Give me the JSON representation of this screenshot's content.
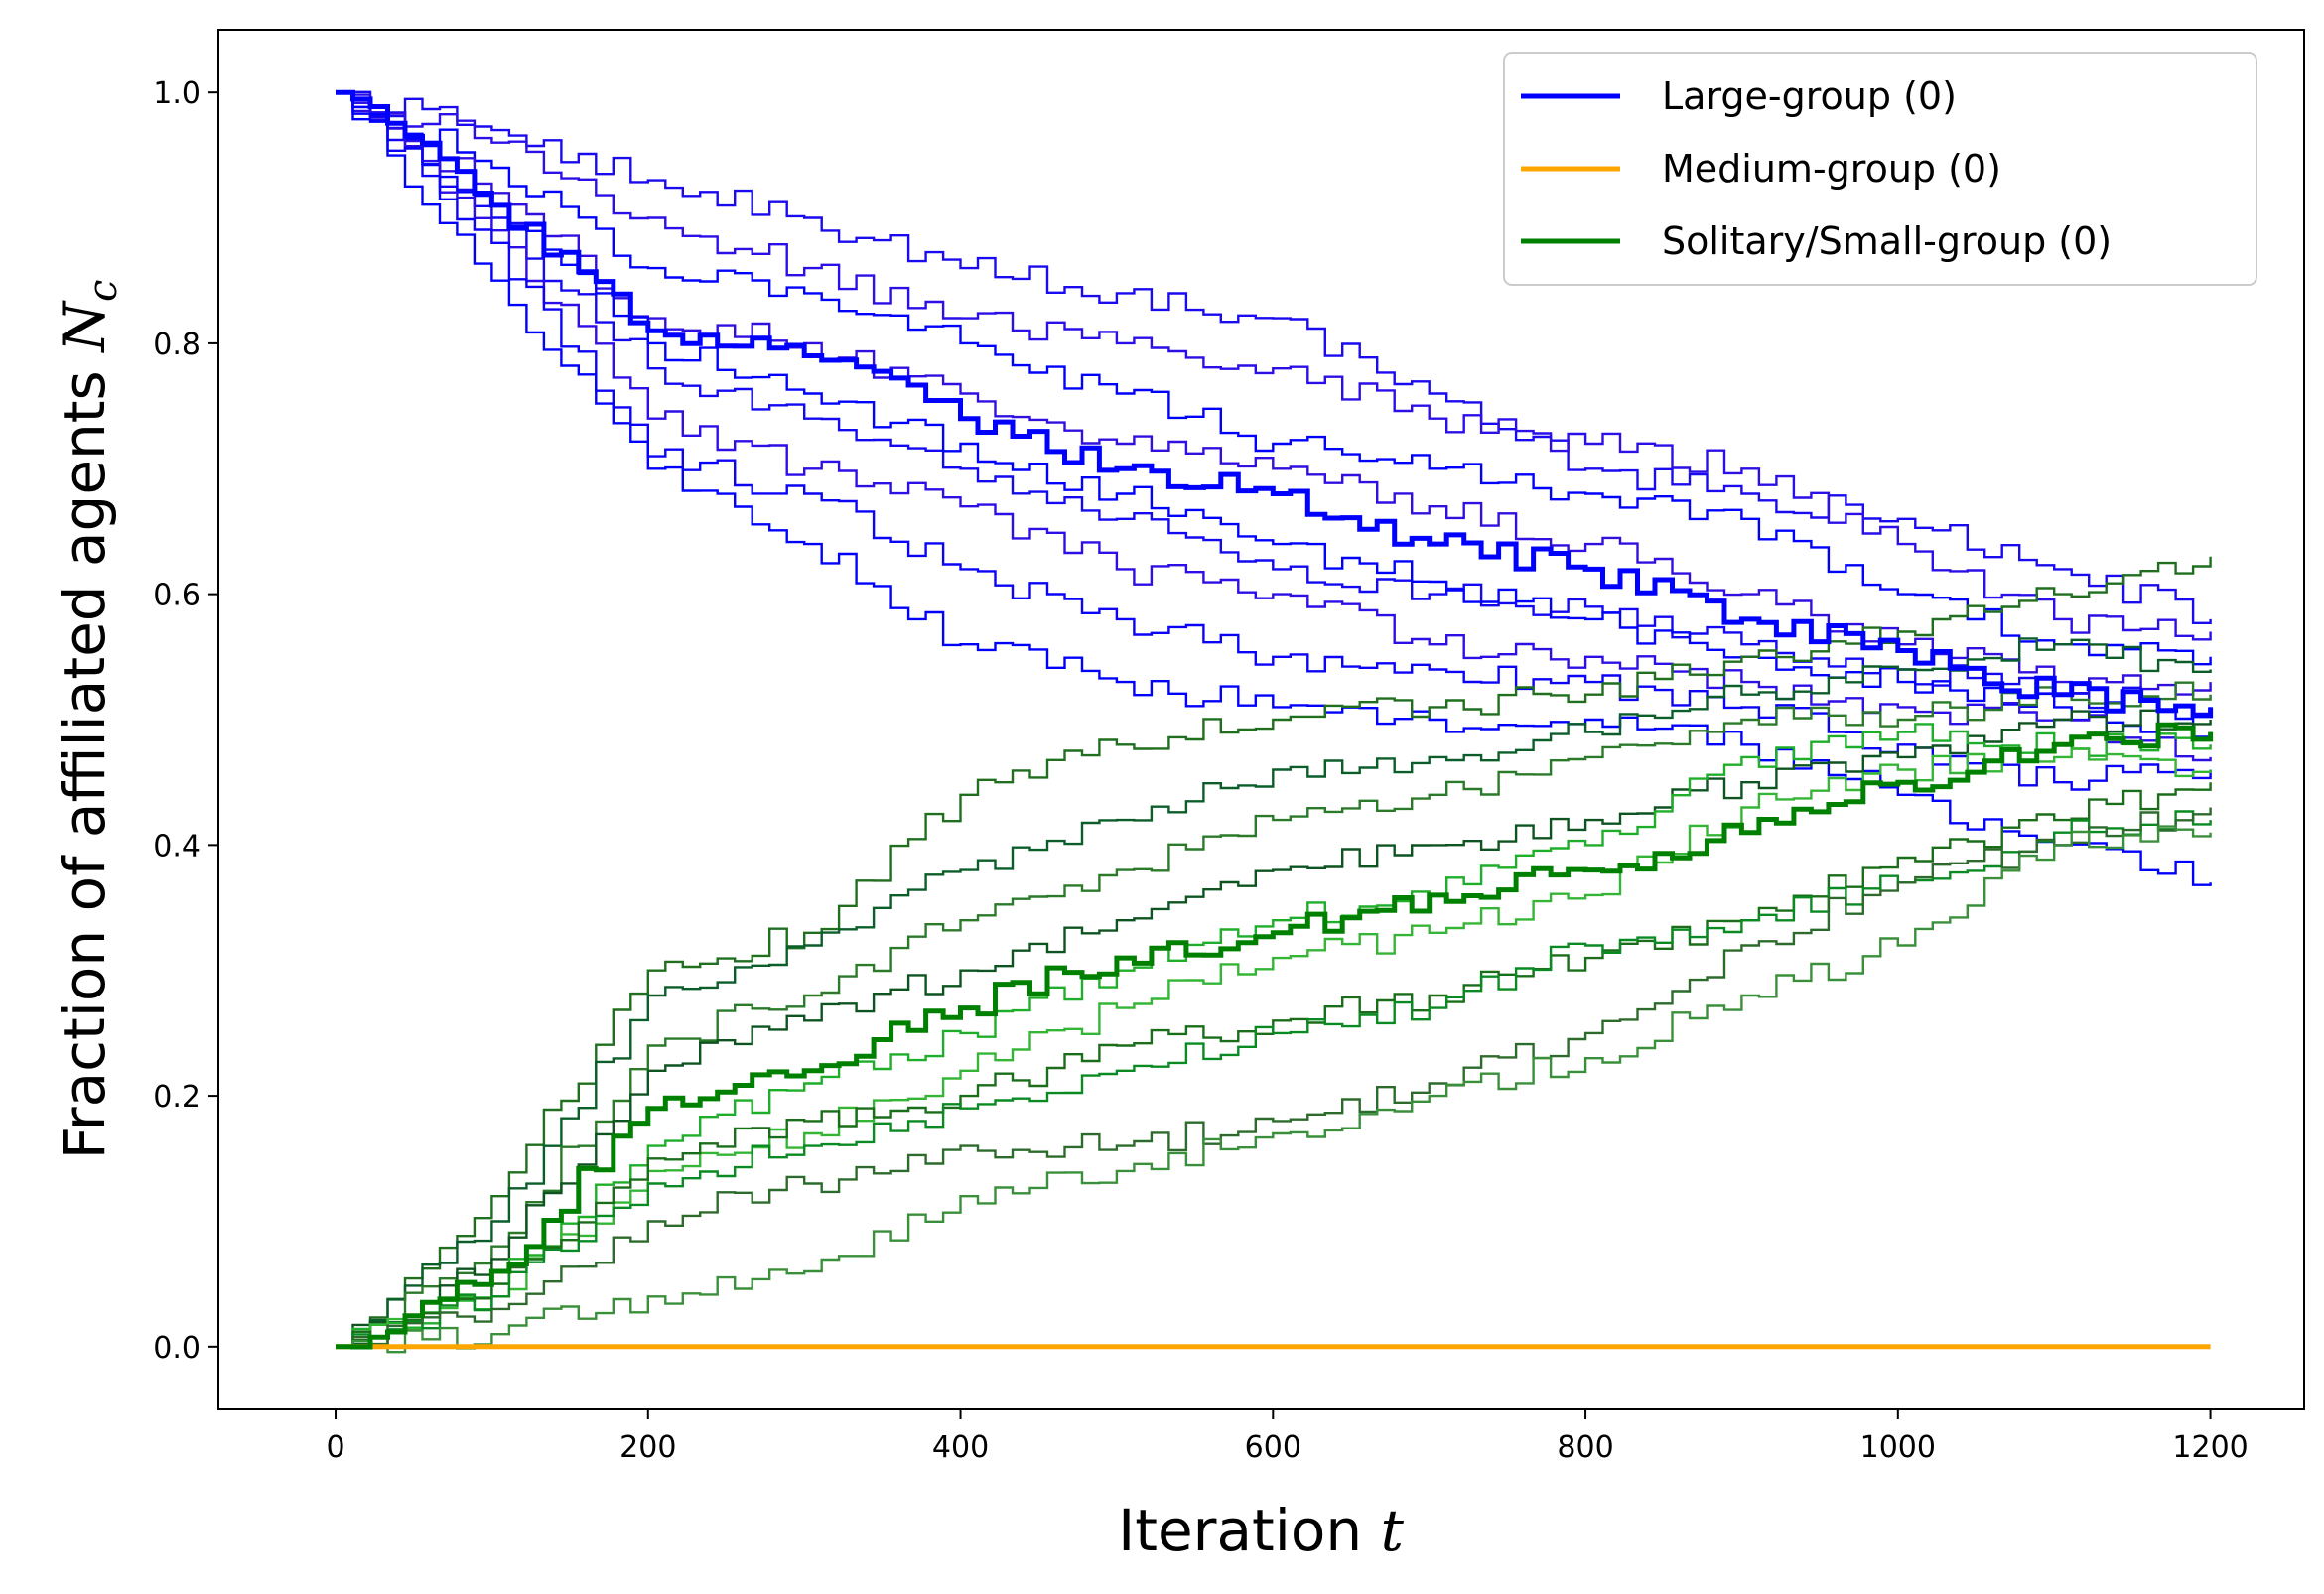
{
  "chart_data": {
    "type": "line",
    "xlabel_text": "Iteration",
    "xlabel_symbol": "t",
    "ylabel_text": "Fraction of affiliated agents",
    "ylabel_symbol": "N",
    "ylabel_subscript": "c",
    "xlim": [
      -75,
      1260
    ],
    "ylim": [
      -0.05,
      1.05
    ],
    "xticks": [
      0,
      200,
      400,
      600,
      800,
      1000,
      1200
    ],
    "yticks": [
      0.0,
      0.2,
      0.4,
      0.6,
      0.8,
      1.0
    ],
    "xtick_labels": [
      "0",
      "200",
      "400",
      "600",
      "800",
      "1000",
      "1200"
    ],
    "ytick_labels": [
      "0.0",
      "0.2",
      "0.4",
      "0.6",
      "0.8",
      "1.0"
    ],
    "grid": false,
    "legend_position": "top-right",
    "legend": [
      {
        "label": "Large-group (0)",
        "color": "#0000ff"
      },
      {
        "label": "Medium-group (0)",
        "color": "#ffa500"
      },
      {
        "label": "Solitary/Small-group (0)",
        "color": "#008000"
      }
    ],
    "x": [
      0,
      100,
      200,
      300,
      400,
      500,
      600,
      700,
      800,
      900,
      1000,
      1100,
      1200
    ],
    "series": [
      {
        "group": "large",
        "role": "mean",
        "color": "#0000ff",
        "values": [
          1.0,
          0.91,
          0.81,
          0.79,
          0.74,
          0.7,
          0.68,
          0.64,
          0.62,
          0.58,
          0.555,
          0.52,
          0.51
        ]
      },
      {
        "group": "large",
        "role": "run",
        "color": "#1a0aef",
        "values": [
          1.0,
          0.97,
          0.93,
          0.9,
          0.86,
          0.84,
          0.82,
          0.76,
          0.7,
          0.68,
          0.66,
          0.62,
          0.58
        ]
      },
      {
        "group": "large",
        "role": "run",
        "color": "#2a0fe8",
        "values": [
          1.0,
          0.96,
          0.9,
          0.86,
          0.82,
          0.8,
          0.78,
          0.74,
          0.72,
          0.7,
          0.64,
          0.58,
          0.57
        ]
      },
      {
        "group": "large",
        "role": "run",
        "color": "#0000ff",
        "values": [
          1.0,
          0.94,
          0.86,
          0.84,
          0.8,
          0.76,
          0.72,
          0.7,
          0.68,
          0.66,
          0.6,
          0.56,
          0.55
        ]
      },
      {
        "group": "large",
        "role": "run",
        "color": "#3010e0",
        "values": [
          1.0,
          0.92,
          0.82,
          0.8,
          0.76,
          0.72,
          0.7,
          0.67,
          0.64,
          0.6,
          0.56,
          0.53,
          0.53
        ]
      },
      {
        "group": "large",
        "role": "run",
        "color": "#1208f2",
        "values": [
          1.0,
          0.9,
          0.78,
          0.74,
          0.7,
          0.66,
          0.62,
          0.6,
          0.59,
          0.56,
          0.54,
          0.52,
          0.51
        ]
      },
      {
        "group": "large",
        "role": "run",
        "color": "#0000ff",
        "values": [
          1.0,
          0.91,
          0.8,
          0.76,
          0.72,
          0.68,
          0.64,
          0.61,
          0.58,
          0.55,
          0.53,
          0.51,
          0.49
        ]
      },
      {
        "group": "large",
        "role": "run",
        "color": "#2c0ee6",
        "values": [
          1.0,
          0.89,
          0.74,
          0.7,
          0.67,
          0.62,
          0.6,
          0.56,
          0.55,
          0.53,
          0.51,
          0.5,
          0.47
        ]
      },
      {
        "group": "large",
        "role": "run",
        "color": "#0a03f8",
        "values": [
          1.0,
          0.88,
          0.71,
          0.68,
          0.62,
          0.58,
          0.55,
          0.54,
          0.53,
          0.51,
          0.48,
          0.45,
          0.46
        ]
      },
      {
        "group": "large",
        "role": "run",
        "color": "#0000ff",
        "values": [
          1.0,
          0.85,
          0.7,
          0.64,
          0.56,
          0.53,
          0.51,
          0.5,
          0.5,
          0.48,
          0.44,
          0.4,
          0.37
        ]
      },
      {
        "group": "medium",
        "role": "mean",
        "color": "#ffa500",
        "values": [
          0,
          0,
          0,
          0,
          0,
          0,
          0,
          0,
          0,
          0,
          0,
          0,
          0
        ]
      },
      {
        "group": "solitary",
        "role": "mean",
        "color": "#008000",
        "values": [
          0.0,
          0.06,
          0.19,
          0.22,
          0.27,
          0.31,
          0.33,
          0.36,
          0.38,
          0.41,
          0.45,
          0.48,
          0.49
        ]
      },
      {
        "group": "solitary",
        "role": "run",
        "color": "#1f6f1f",
        "values": [
          0.0,
          0.12,
          0.3,
          0.33,
          0.44,
          0.48,
          0.5,
          0.51,
          0.52,
          0.55,
          0.57,
          0.6,
          0.63
        ]
      },
      {
        "group": "solitary",
        "role": "run",
        "color": "#0b5e2a",
        "values": [
          0.0,
          0.1,
          0.28,
          0.32,
          0.38,
          0.42,
          0.46,
          0.47,
          0.49,
          0.52,
          0.54,
          0.56,
          0.54
        ]
      },
      {
        "group": "solitary",
        "role": "run",
        "color": "#2a7a2a",
        "values": [
          0.0,
          0.08,
          0.24,
          0.28,
          0.34,
          0.38,
          0.42,
          0.44,
          0.47,
          0.5,
          0.5,
          0.52,
          0.52
        ]
      },
      {
        "group": "solitary",
        "role": "run",
        "color": "#0e5420",
        "values": [
          0.0,
          0.07,
          0.22,
          0.26,
          0.3,
          0.34,
          0.38,
          0.4,
          0.42,
          0.45,
          0.47,
          0.5,
          0.5
        ]
      },
      {
        "group": "solitary",
        "role": "run",
        "color": "#1fae2a",
        "values": [
          0.0,
          0.05,
          0.16,
          0.21,
          0.25,
          0.3,
          0.34,
          0.36,
          0.4,
          0.47,
          0.49,
          0.48,
          0.48
        ]
      },
      {
        "group": "solitary",
        "role": "run",
        "color": "#35b535",
        "values": [
          0.0,
          0.04,
          0.14,
          0.17,
          0.22,
          0.27,
          0.31,
          0.33,
          0.36,
          0.43,
          0.46,
          0.47,
          0.46
        ]
      },
      {
        "group": "solitary",
        "role": "run",
        "color": "#1a6e1a",
        "values": [
          0.0,
          0.05,
          0.15,
          0.18,
          0.2,
          0.24,
          0.26,
          0.28,
          0.31,
          0.34,
          0.39,
          0.42,
          0.45
        ]
      },
      {
        "group": "solitary",
        "role": "run",
        "color": "#0a8a22",
        "values": [
          0.0,
          0.04,
          0.13,
          0.16,
          0.19,
          0.22,
          0.25,
          0.27,
          0.32,
          0.34,
          0.37,
          0.41,
          0.42
        ]
      },
      {
        "group": "solitary",
        "role": "run",
        "color": "#2d6b2d",
        "values": [
          0.0,
          0.03,
          0.1,
          0.13,
          0.16,
          0.16,
          0.18,
          0.21,
          0.25,
          0.32,
          0.37,
          0.4,
          0.43
        ]
      },
      {
        "group": "solitary",
        "role": "run",
        "color": "#3a8f3a",
        "values": [
          0.0,
          0.01,
          0.04,
          0.06,
          0.12,
          0.14,
          0.17,
          0.2,
          0.23,
          0.28,
          0.32,
          0.4,
          0.41
        ]
      }
    ]
  }
}
